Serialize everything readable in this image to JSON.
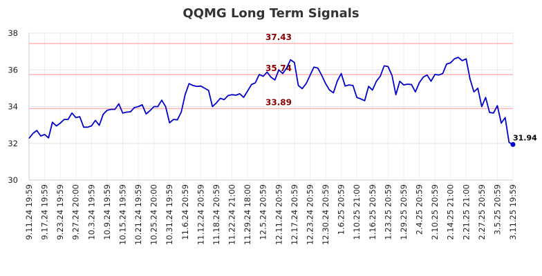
{
  "chart_data": {
    "type": "line",
    "title": "QQMG Long Term Signals",
    "xlabel": "",
    "ylabel": "",
    "ylim": [
      30,
      38
    ],
    "yticks": [
      30,
      32,
      34,
      36,
      38
    ],
    "grid": true,
    "line_color": "#0000cc",
    "reference_line_color": "#ffb3b3",
    "x_tick_labels": [
      "9.11.24 19:59",
      "9.17.24 19:59",
      "9.23.24 19:59",
      "9.27.24 20:00",
      "10.3.24 19:59",
      "10.9.24 19:59",
      "10.15.24 19:59",
      "10.21.24 19:59",
      "10.25.24 20:00",
      "10.31.24 19:59",
      "11.6.24 20:59",
      "11.12.24 20:59",
      "11.18.24 20:59",
      "11.22.24 21:00",
      "11.29.24 18:00",
      "12.5.24 20:59",
      "12.11.24 20:59",
      "12.17.24 20:59",
      "12.23.24 20:59",
      "12.30.24 20:59",
      "1.6.25 20:59",
      "1.10.25 21:00",
      "1.16.25 20:59",
      "1.23.25 20:59",
      "1.29.25 20:59",
      "2.4.25 20:59",
      "2.10.25 20:59",
      "2.14.25 21:00",
      "2.21.25 21:00",
      "2.27.25 20:59",
      "3.5.25 20:59",
      "3.11.25 19:59"
    ],
    "reference_lines": [
      {
        "value": 37.43,
        "label": "37.43"
      },
      {
        "value": 35.74,
        "label": "35.74"
      },
      {
        "value": 33.89,
        "label": "33.89"
      }
    ],
    "last_value_label": "31.94",
    "values": [
      32.27,
      32.54,
      32.7,
      32.4,
      32.48,
      32.3,
      33.15,
      32.95,
      33.1,
      33.3,
      33.3,
      33.65,
      33.4,
      33.45,
      32.88,
      32.88,
      32.95,
      33.25,
      32.98,
      33.58,
      33.8,
      33.85,
      33.85,
      34.15,
      33.65,
      33.7,
      33.72,
      33.95,
      34.0,
      34.1,
      33.6,
      33.78,
      34.0,
      34.0,
      34.35,
      34.0,
      33.12,
      33.3,
      33.28,
      33.7,
      34.65,
      35.25,
      35.15,
      35.1,
      35.12,
      35.0,
      34.88,
      34.0,
      34.2,
      34.45,
      34.38,
      34.6,
      34.65,
      34.62,
      34.7,
      34.5,
      34.85,
      35.2,
      35.3,
      35.75,
      35.65,
      35.88,
      35.6,
      35.45,
      36.0,
      35.8,
      36.1,
      36.55,
      36.4,
      35.15,
      34.98,
      35.25,
      35.7,
      36.15,
      36.1,
      35.7,
      35.25,
      34.9,
      34.75,
      35.4,
      35.8,
      35.12,
      35.18,
      35.15,
      34.5,
      34.42,
      34.32,
      35.1,
      34.9,
      35.38,
      35.65,
      36.22,
      36.18,
      35.7,
      34.65,
      35.38,
      35.18,
      35.22,
      35.2,
      34.8,
      35.3,
      35.6,
      35.72,
      35.38,
      35.75,
      35.72,
      35.8,
      36.32,
      36.38,
      36.6,
      36.68,
      36.5,
      36.6,
      35.5,
      34.8,
      35.0,
      34.0,
      34.5,
      33.68,
      33.65,
      34.05,
      33.1,
      33.4,
      32.05,
      31.94
    ]
  }
}
